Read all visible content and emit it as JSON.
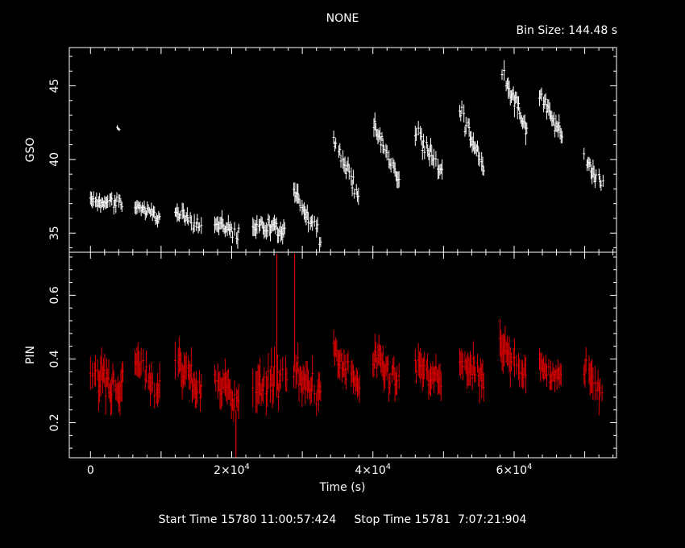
{
  "title": "NONE",
  "bin_size_label": "Bin Size: 144.48 s",
  "footer": {
    "start_time": "Start Time 15780 11:00:57:424",
    "stop_time": "Stop Time 15781  7:07:21:904"
  },
  "colors": {
    "background": "#000000",
    "axes": "#ffffff",
    "gso_series": "#ffffff",
    "pin_series": "#e00000"
  },
  "chart_data": [
    {
      "type": "scatter",
      "name": "GSO",
      "ylabel": "GSO",
      "xlabel": "Time (s)",
      "xlim": [
        -3000,
        74500
      ],
      "ylim": [
        33.7,
        47.6
      ],
      "yticks": [
        35,
        40,
        45
      ],
      "series_color": "#ffffff",
      "segments": [
        {
          "x_start": 0,
          "x_end": 4600,
          "y_start": 37.2,
          "y_end": 37.0,
          "noise": 0.7
        },
        {
          "x_start": 3800,
          "x_end": 4200,
          "y_start": 42.1,
          "y_end": 42.1,
          "noise": 0.2
        },
        {
          "x_start": 6300,
          "x_end": 9800,
          "y_start": 36.9,
          "y_end": 36.1,
          "noise": 0.6
        },
        {
          "x_start": 12000,
          "x_end": 15700,
          "y_start": 36.3,
          "y_end": 35.5,
          "noise": 0.8
        },
        {
          "x_start": 17600,
          "x_end": 21000,
          "y_start": 35.7,
          "y_end": 35.0,
          "noise": 0.8
        },
        {
          "x_start": 23000,
          "x_end": 27800,
          "y_start": 35.6,
          "y_end": 34.9,
          "noise": 0.9
        },
        {
          "x_start": 28800,
          "x_end": 32600,
          "y_start": 37.8,
          "y_end": 34.8,
          "noise": 0.9
        },
        {
          "x_start": 34300,
          "x_end": 38100,
          "y_start": 41.4,
          "y_end": 37.5,
          "noise": 0.8
        },
        {
          "x_start": 40000,
          "x_end": 43700,
          "y_start": 42.4,
          "y_end": 38.5,
          "noise": 0.8
        },
        {
          "x_start": 46000,
          "x_end": 49800,
          "y_start": 42.0,
          "y_end": 39.0,
          "noise": 0.9
        },
        {
          "x_start": 52300,
          "x_end": 55700,
          "y_start": 43.5,
          "y_end": 39.3,
          "noise": 0.9
        },
        {
          "x_start": 58000,
          "x_end": 61800,
          "y_start": 46.5,
          "y_end": 41.8,
          "noise": 1.0
        },
        {
          "x_start": 63600,
          "x_end": 66800,
          "y_start": 44.5,
          "y_end": 41.5,
          "noise": 0.8
        },
        {
          "x_start": 69900,
          "x_end": 72600,
          "y_start": 40.0,
          "y_end": 38.3,
          "noise": 0.8
        }
      ]
    },
    {
      "type": "scatter",
      "name": "PIN",
      "ylabel": "PIN",
      "xlabel": "Time (s)",
      "xlim": [
        -3000,
        74500
      ],
      "ylim": [
        0.09,
        0.735
      ],
      "yticks": [
        0.2,
        0.4,
        0.6
      ],
      "xticks": [
        {
          "value": 0,
          "label": "0"
        },
        {
          "value": 20000,
          "label": "2×10",
          "exp": "4"
        },
        {
          "value": 40000,
          "label": "4×10",
          "exp": "4"
        },
        {
          "value": 60000,
          "label": "6×10",
          "exp": "4"
        }
      ],
      "series_color": "#e00000",
      "segments": [
        {
          "x_start": 0,
          "x_end": 4600,
          "y_start": 0.36,
          "y_end": 0.3,
          "noise": 0.08
        },
        {
          "x_start": 6300,
          "x_end": 9800,
          "y_start": 0.4,
          "y_end": 0.3,
          "noise": 0.07
        },
        {
          "x_start": 12000,
          "x_end": 15700,
          "y_start": 0.38,
          "y_end": 0.3,
          "noise": 0.08
        },
        {
          "x_start": 17600,
          "x_end": 21000,
          "y_start": 0.33,
          "y_end": 0.28,
          "noise": 0.08
        },
        {
          "x_start": 23000,
          "x_end": 27800,
          "y_start": 0.3,
          "y_end": 0.34,
          "noise": 0.09
        },
        {
          "x_start": 28800,
          "x_end": 32600,
          "y_start": 0.35,
          "y_end": 0.3,
          "noise": 0.08
        },
        {
          "x_start": 34300,
          "x_end": 38100,
          "y_start": 0.42,
          "y_end": 0.32,
          "noise": 0.06
        },
        {
          "x_start": 40000,
          "x_end": 43700,
          "y_start": 0.4,
          "y_end": 0.32,
          "noise": 0.07
        },
        {
          "x_start": 46000,
          "x_end": 49800,
          "y_start": 0.38,
          "y_end": 0.32,
          "noise": 0.07
        },
        {
          "x_start": 52300,
          "x_end": 55700,
          "y_start": 0.4,
          "y_end": 0.33,
          "noise": 0.07
        },
        {
          "x_start": 58000,
          "x_end": 61800,
          "y_start": 0.44,
          "y_end": 0.36,
          "noise": 0.08
        },
        {
          "x_start": 63600,
          "x_end": 66800,
          "y_start": 0.37,
          "y_end": 0.33,
          "noise": 0.06
        },
        {
          "x_start": 69900,
          "x_end": 72600,
          "y_start": 0.38,
          "y_end": 0.3,
          "noise": 0.07
        }
      ],
      "spikes": [
        {
          "x": 26400,
          "y_low": 0.28,
          "y_high": 0.73
        },
        {
          "x": 28900,
          "y_low": 0.36,
          "y_high": 0.73
        },
        {
          "x": 20600,
          "y_low": 0.09,
          "y_high": 0.24
        }
      ]
    }
  ]
}
